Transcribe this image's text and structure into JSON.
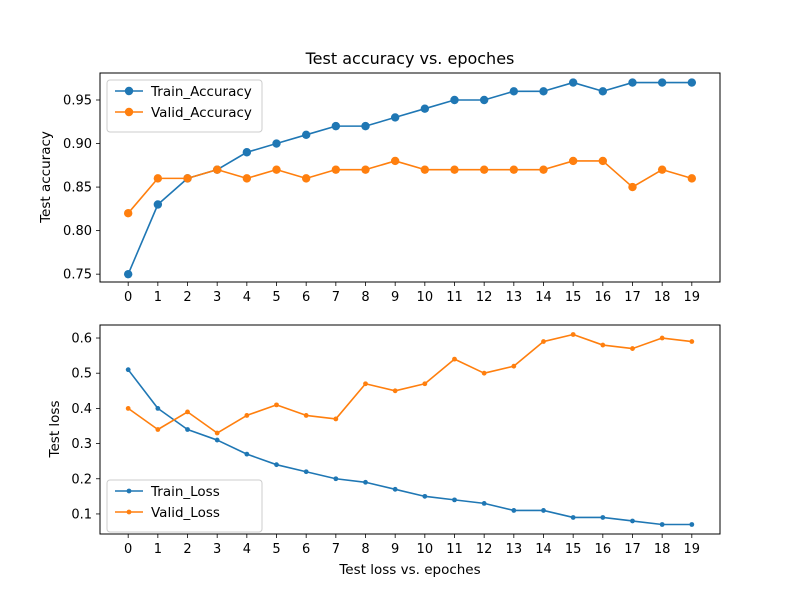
{
  "colors": {
    "train": "#1f77b4",
    "valid": "#ff7f0e"
  },
  "chart_data": [
    {
      "type": "line",
      "title": "Test accuracy vs. epoches",
      "xlabel": "",
      "ylabel": "Test accuracy",
      "x": [
        0,
        1,
        2,
        3,
        4,
        5,
        6,
        7,
        8,
        9,
        10,
        11,
        12,
        13,
        14,
        15,
        16,
        17,
        18,
        19
      ],
      "xticks": [
        "0",
        "1",
        "2",
        "3",
        "4",
        "5",
        "6",
        "7",
        "8",
        "9",
        "10",
        "11",
        "12",
        "13",
        "14",
        "15",
        "16",
        "17",
        "18",
        "19"
      ],
      "ylim": [
        0.741,
        0.981
      ],
      "yticks": [
        0.75,
        0.8,
        0.85,
        0.9,
        0.95
      ],
      "ytick_labels": [
        "0.75",
        "0.80",
        "0.85",
        "0.90",
        "0.95"
      ],
      "legend": "top-left",
      "grid": false,
      "marker": "large-circle",
      "series": [
        {
          "name": "Train_Accuracy",
          "color": "#1f77b4",
          "values": [
            0.75,
            0.83,
            0.86,
            0.87,
            0.89,
            0.9,
            0.91,
            0.92,
            0.92,
            0.93,
            0.94,
            0.95,
            0.95,
            0.96,
            0.96,
            0.97,
            0.96,
            0.97,
            0.97,
            0.97
          ]
        },
        {
          "name": "Valid_Accuracy",
          "color": "#ff7f0e",
          "values": [
            0.82,
            0.86,
            0.86,
            0.87,
            0.86,
            0.87,
            0.86,
            0.87,
            0.87,
            0.88,
            0.87,
            0.87,
            0.87,
            0.87,
            0.87,
            0.88,
            0.88,
            0.85,
            0.87,
            0.86
          ]
        }
      ]
    },
    {
      "type": "line",
      "title": "",
      "xlabel": "Test loss vs. epoches",
      "ylabel": "Test loss",
      "x": [
        0,
        1,
        2,
        3,
        4,
        5,
        6,
        7,
        8,
        9,
        10,
        11,
        12,
        13,
        14,
        15,
        16,
        17,
        18,
        19
      ],
      "xticks": [
        "0",
        "1",
        "2",
        "3",
        "4",
        "5",
        "6",
        "7",
        "8",
        "9",
        "10",
        "11",
        "12",
        "13",
        "14",
        "15",
        "16",
        "17",
        "18",
        "19"
      ],
      "ylim": [
        0.043,
        0.637
      ],
      "yticks": [
        0.1,
        0.2,
        0.3,
        0.4,
        0.5,
        0.6
      ],
      "ytick_labels": [
        "0.1",
        "0.2",
        "0.3",
        "0.4",
        "0.5",
        "0.6"
      ],
      "legend": "bottom-left",
      "grid": false,
      "marker": "small-dot",
      "series": [
        {
          "name": "Train_Loss",
          "color": "#1f77b4",
          "values": [
            0.51,
            0.4,
            0.34,
            0.31,
            0.27,
            0.24,
            0.22,
            0.2,
            0.19,
            0.17,
            0.15,
            0.14,
            0.13,
            0.11,
            0.11,
            0.09,
            0.09,
            0.08,
            0.07,
            0.07
          ]
        },
        {
          "name": "Valid_Loss",
          "color": "#ff7f0e",
          "values": [
            0.4,
            0.34,
            0.39,
            0.33,
            0.38,
            0.41,
            0.38,
            0.37,
            0.47,
            0.45,
            0.47,
            0.54,
            0.5,
            0.52,
            0.59,
            0.61,
            0.58,
            0.57,
            0.6,
            0.59
          ]
        }
      ]
    }
  ]
}
